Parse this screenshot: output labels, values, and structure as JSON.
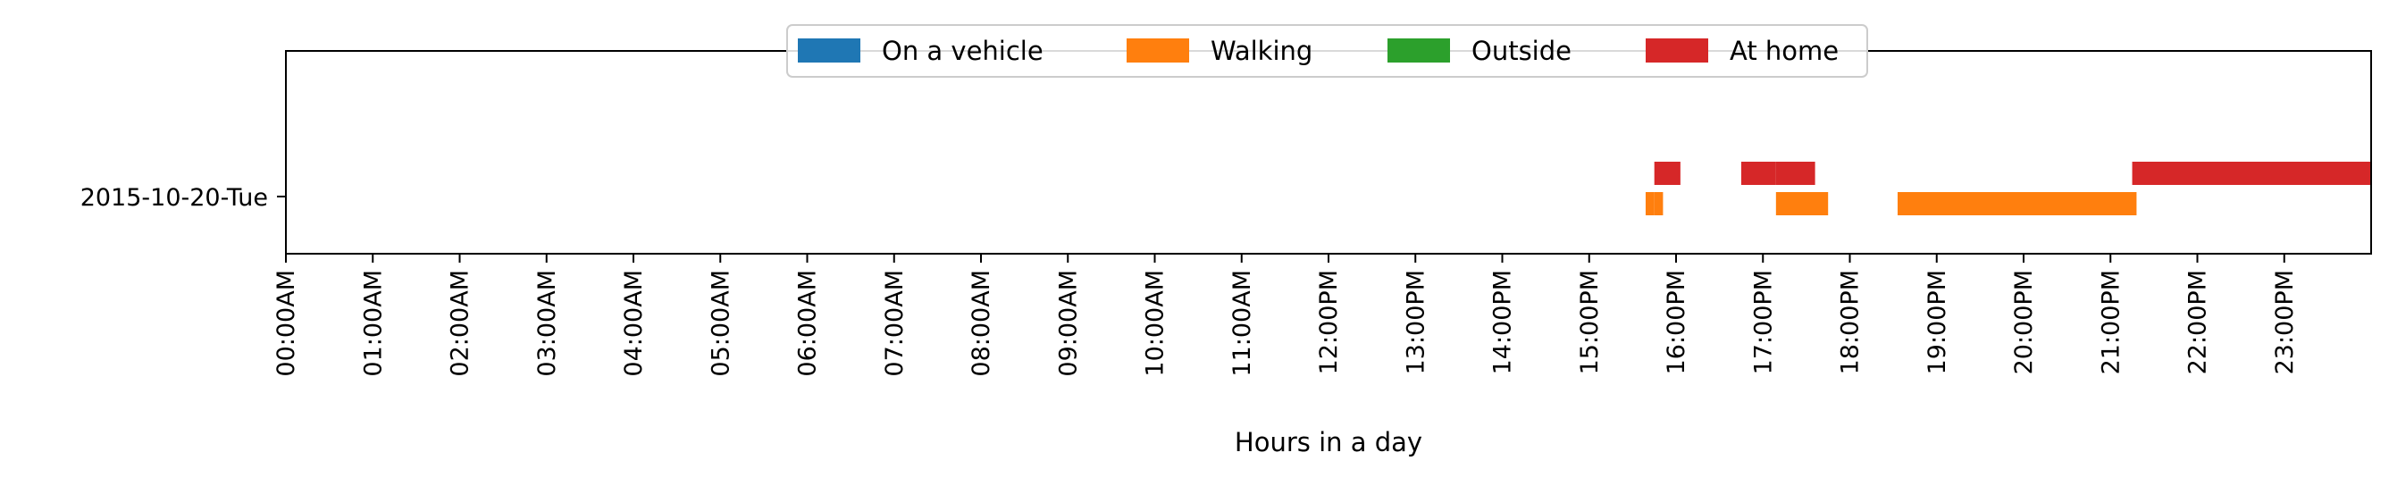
{
  "chart_data": {
    "type": "bar",
    "orientation": "horizontal",
    "title": "",
    "xlabel": "Hours in a day",
    "ylabel": "",
    "xlim": [
      0,
      24
    ],
    "grid": false,
    "legend_position": "top-center",
    "categories": [
      "2015-10-20-Tue"
    ],
    "x_ticks": [
      "00:00AM",
      "01:00AM",
      "02:00AM",
      "03:00AM",
      "04:00AM",
      "05:00AM",
      "06:00AM",
      "07:00AM",
      "08:00AM",
      "09:00AM",
      "10:00AM",
      "11:00AM",
      "12:00PM",
      "13:00PM",
      "14:00PM",
      "15:00PM",
      "16:00PM",
      "17:00PM",
      "18:00PM",
      "19:00PM",
      "20:00PM",
      "21:00PM",
      "22:00PM",
      "23:00PM"
    ],
    "series": [
      {
        "name": "On a vehicle",
        "color": "#1f77b4",
        "lane": 0,
        "intervals": []
      },
      {
        "name": "Walking",
        "color": "#ff7f0e",
        "lane": 1,
        "intervals": [
          [
            15.65,
            15.75
          ],
          [
            15.75,
            15.85
          ],
          [
            17.15,
            17.75
          ],
          [
            18.55,
            21.3
          ]
        ]
      },
      {
        "name": "Outside",
        "color": "#2ca02c",
        "lane": 2,
        "intervals": []
      },
      {
        "name": "At home",
        "color": "#d62728",
        "lane": 3,
        "intervals": [
          [
            15.75,
            16.05
          ],
          [
            16.75,
            17.15
          ],
          [
            17.15,
            17.6
          ],
          [
            21.25,
            24.0
          ]
        ]
      }
    ]
  }
}
